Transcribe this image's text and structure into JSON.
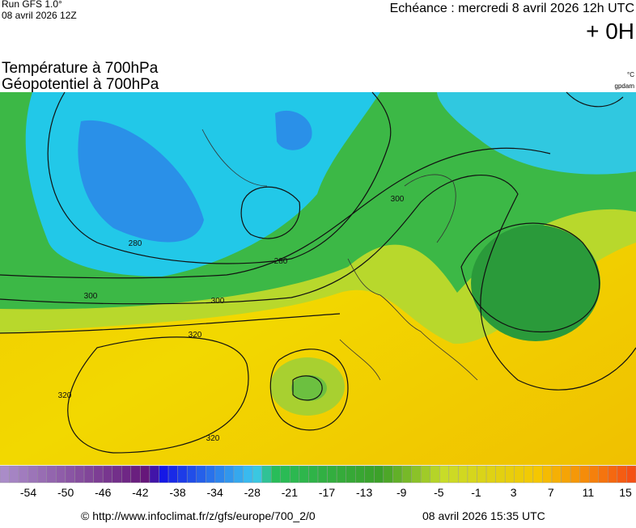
{
  "header": {
    "run": "Run GFS 1.0°",
    "date": "08 avril 2026 12Z",
    "echeance": "Echéance : mercredi 8 avril 2026 12h UTC",
    "lead": "+ 0H"
  },
  "titles": [
    "Température à 700hPa",
    "Géopotentiel à 700hPa"
  ],
  "units": [
    "°C",
    "gpdam"
  ],
  "contour_labels": [
    "280",
    "280",
    "300",
    "300",
    "300",
    "320",
    "320",
    "320"
  ],
  "colorbar": {
    "labels": [
      "-54",
      "-50",
      "-46",
      "-42",
      "-38",
      "-34",
      "-28",
      "-21",
      "-17",
      "-13",
      "-9",
      "-5",
      "-1",
      "3",
      "7",
      "11",
      "15"
    ]
  },
  "footer": {
    "url": "© http://www.infoclimat.fr/z/gfs/europe/700_2/0",
    "timestamp": "08 avril 2026 15:35 UTC"
  }
}
